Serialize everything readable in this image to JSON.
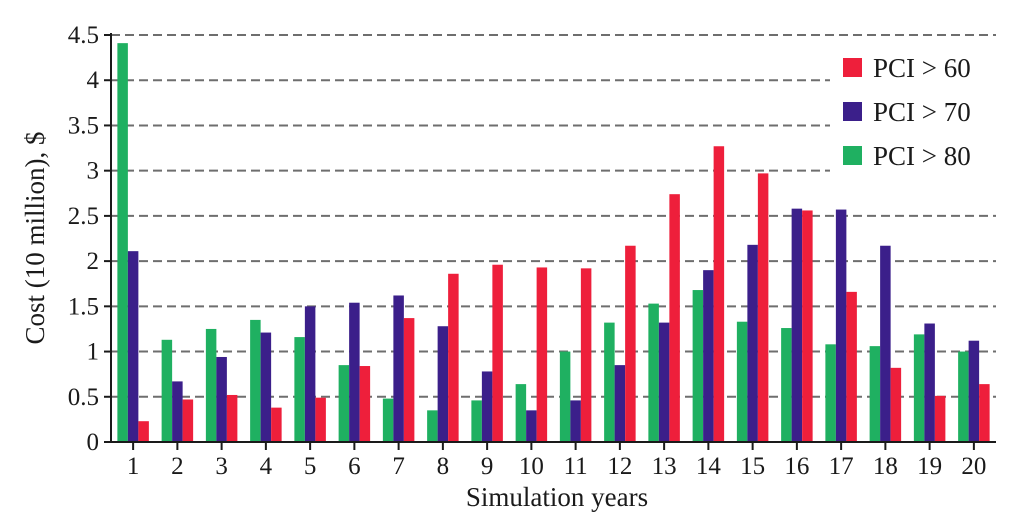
{
  "chart_data": {
    "type": "bar",
    "xlabel": "Simulation years",
    "ylabel": "Cost (10 million), $",
    "ylim": [
      0,
      4.5
    ],
    "y_ticks": [
      "0",
      "0.5",
      "1",
      "1.5",
      "2",
      "2.5",
      "3",
      "3.5",
      "4",
      "4.5"
    ],
    "grid": "horizontal dashed",
    "legend_position": "top-right",
    "categories": [
      "1",
      "2",
      "3",
      "4",
      "5",
      "6",
      "7",
      "8",
      "9",
      "10",
      "11",
      "12",
      "13",
      "14",
      "15",
      "16",
      "17",
      "18",
      "19",
      "20"
    ],
    "series": [
      {
        "name": "PCI > 80",
        "color": "#1fb061",
        "values": [
          4.41,
          1.13,
          1.25,
          1.35,
          1.16,
          0.85,
          0.48,
          0.35,
          0.46,
          0.64,
          1.0,
          1.32,
          1.53,
          1.68,
          1.33,
          1.26,
          1.08,
          1.06,
          1.19,
          1.0
        ]
      },
      {
        "name": "PCI > 70",
        "color": "#3b1f8a",
        "values": [
          2.11,
          0.67,
          0.94,
          1.21,
          1.5,
          1.54,
          1.62,
          1.28,
          0.78,
          0.35,
          0.46,
          0.85,
          1.32,
          1.9,
          2.18,
          2.58,
          2.57,
          2.17,
          1.31,
          1.12
        ]
      },
      {
        "name": "PCI > 60",
        "color": "#ee1f3b",
        "values": [
          0.23,
          0.47,
          0.52,
          0.38,
          0.49,
          0.84,
          1.37,
          1.86,
          1.96,
          1.93,
          1.92,
          2.17,
          2.74,
          3.27,
          2.97,
          2.56,
          1.66,
          0.82,
          0.51,
          0.64
        ]
      }
    ],
    "legend": [
      "PCI > 60",
      "PCI > 70",
      "PCI > 80"
    ]
  }
}
